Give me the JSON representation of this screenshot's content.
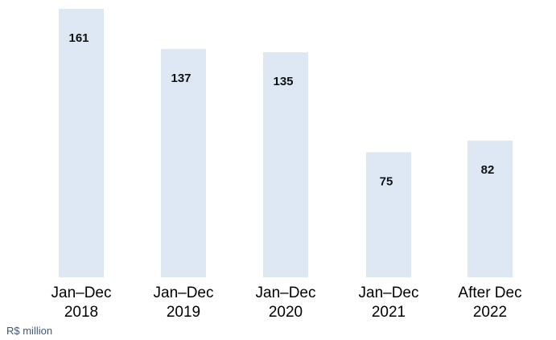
{
  "chart_data": {
    "type": "bar",
    "categories": [
      [
        "Jan–Dec",
        "2018"
      ],
      [
        "Jan–Dec",
        "2019"
      ],
      [
        "Jan–Dec",
        "2020"
      ],
      [
        "Jan–Dec",
        "2021"
      ],
      [
        "After Dec",
        "2022"
      ]
    ],
    "values": [
      161,
      137,
      135,
      75,
      82
    ],
    "value_labels": [
      "161",
      "137",
      "135",
      "75",
      "82"
    ],
    "unit": "R$ million",
    "ylim": [
      0,
      161
    ],
    "grid": false,
    "legend": "none",
    "colors": {
      "bar": "#dde8f4",
      "value_text": "#111111",
      "category_text": "#000000",
      "unit_text": "#3d5a80"
    }
  }
}
